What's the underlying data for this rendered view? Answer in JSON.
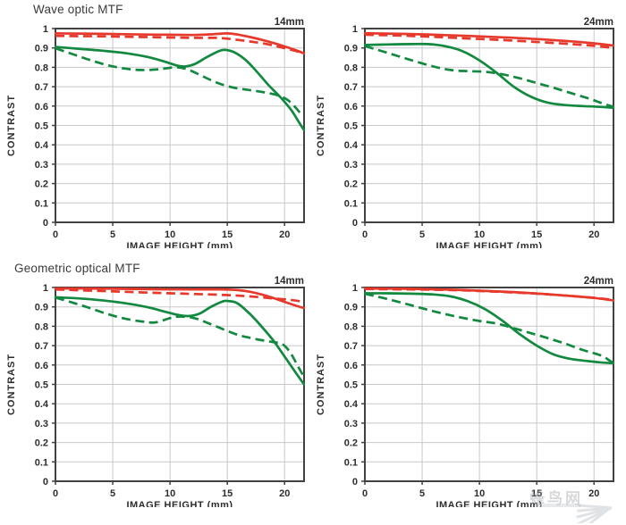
{
  "page": {
    "background": "#ffffff"
  },
  "sections": [
    {
      "title": "Wave optic MTF"
    },
    {
      "title": "Geometric optical MTF"
    }
  ],
  "watermark": {
    "text": "蜂鸟网"
  },
  "colors": {
    "red": "#e6392b",
    "green": "#12893f",
    "grid": "#c8c8c8",
    "axis": "#414141",
    "text": "#2d2d2d",
    "watermark_ray": "#c3c8cc"
  },
  "chart_data": [
    {
      "type": "line",
      "section": "Wave optic MTF",
      "focal_label": "14mm",
      "xlabel": "IMAGE HEIGHT (mm)",
      "ylabel": "CONTRAST",
      "xlim": [
        0,
        21.7
      ],
      "ylim": [
        0,
        1
      ],
      "xticks": [
        0,
        5,
        10,
        15,
        20
      ],
      "ytick_step": 0.1,
      "grid": true,
      "legend": "none",
      "series": [
        {
          "name": "red-solid",
          "color": "red",
          "dashed": false,
          "points": [
            [
              0,
              0.975
            ],
            [
              2,
              0.974
            ],
            [
              4,
              0.973
            ],
            [
              6,
              0.971
            ],
            [
              8,
              0.969
            ],
            [
              10,
              0.968
            ],
            [
              12,
              0.967
            ],
            [
              13.5,
              0.97
            ],
            [
              15,
              0.975
            ],
            [
              16,
              0.968
            ],
            [
              17,
              0.956
            ],
            [
              18,
              0.942
            ],
            [
              19,
              0.926
            ],
            [
              20,
              0.908
            ],
            [
              21,
              0.888
            ],
            [
              21.7,
              0.872
            ]
          ]
        },
        {
          "name": "red-dashed",
          "color": "red",
          "dashed": true,
          "points": [
            [
              0,
              0.962
            ],
            [
              2,
              0.961
            ],
            [
              4,
              0.96
            ],
            [
              6,
              0.958
            ],
            [
              8,
              0.956
            ],
            [
              10,
              0.954
            ],
            [
              12,
              0.952
            ],
            [
              14,
              0.952
            ],
            [
              15,
              0.948
            ],
            [
              16,
              0.941
            ],
            [
              17,
              0.933
            ],
            [
              18,
              0.925
            ],
            [
              19,
              0.913
            ],
            [
              20,
              0.899
            ],
            [
              21,
              0.884
            ],
            [
              21.7,
              0.87
            ]
          ]
        },
        {
          "name": "green-solid",
          "color": "green",
          "dashed": false,
          "points": [
            [
              0,
              0.905
            ],
            [
              2,
              0.896
            ],
            [
              4,
              0.886
            ],
            [
              6,
              0.874
            ],
            [
              8,
              0.854
            ],
            [
              9.5,
              0.83
            ],
            [
              10.7,
              0.808
            ],
            [
              11.4,
              0.805
            ],
            [
              12.2,
              0.818
            ],
            [
              13.2,
              0.852
            ],
            [
              14.2,
              0.882
            ],
            [
              14.8,
              0.89
            ],
            [
              15.6,
              0.878
            ],
            [
              16.6,
              0.838
            ],
            [
              17.6,
              0.776
            ],
            [
              18.6,
              0.708
            ],
            [
              19.6,
              0.648
            ],
            [
              20.6,
              0.578
            ],
            [
              21.3,
              0.512
            ],
            [
              21.7,
              0.476
            ]
          ]
        },
        {
          "name": "green-dashed",
          "color": "green",
          "dashed": true,
          "points": [
            [
              0,
              0.898
            ],
            [
              1.5,
              0.868
            ],
            [
              3,
              0.838
            ],
            [
              4.5,
              0.812
            ],
            [
              6,
              0.794
            ],
            [
              7.5,
              0.786
            ],
            [
              9,
              0.79
            ],
            [
              10.5,
              0.8
            ],
            [
              11.5,
              0.79
            ],
            [
              12.5,
              0.764
            ],
            [
              13.5,
              0.736
            ],
            [
              14.5,
              0.712
            ],
            [
              15.5,
              0.696
            ],
            [
              16.5,
              0.686
            ],
            [
              17.5,
              0.678
            ],
            [
              18.5,
              0.668
            ],
            [
              19.5,
              0.654
            ],
            [
              20.3,
              0.63
            ],
            [
              21,
              0.59
            ],
            [
              21.45,
              0.556
            ]
          ]
        }
      ]
    },
    {
      "type": "line",
      "section": "Wave optic MTF",
      "focal_label": "24mm",
      "xlabel": "IMAGE HEIGHT (mm)",
      "ylabel": "CONTRAST",
      "xlim": [
        0,
        21.7
      ],
      "ylim": [
        0,
        1
      ],
      "xticks": [
        0,
        5,
        10,
        15,
        20
      ],
      "ytick_step": 0.1,
      "grid": true,
      "legend": "none",
      "series": [
        {
          "name": "red-solid",
          "color": "red",
          "dashed": false,
          "points": [
            [
              0,
              0.976
            ],
            [
              3,
              0.973
            ],
            [
              6,
              0.968
            ],
            [
              9,
              0.962
            ],
            [
              12,
              0.955
            ],
            [
              15,
              0.946
            ],
            [
              18,
              0.934
            ],
            [
              20,
              0.924
            ],
            [
              21.7,
              0.912
            ]
          ]
        },
        {
          "name": "red-dashed",
          "color": "red",
          "dashed": true,
          "points": [
            [
              0,
              0.968
            ],
            [
              3,
              0.964
            ],
            [
              6,
              0.957
            ],
            [
              9,
              0.949
            ],
            [
              12,
              0.941
            ],
            [
              15,
              0.931
            ],
            [
              18,
              0.92
            ],
            [
              20,
              0.911
            ],
            [
              21.7,
              0.9
            ]
          ]
        },
        {
          "name": "green-solid",
          "color": "green",
          "dashed": false,
          "points": [
            [
              0,
              0.915
            ],
            [
              2,
              0.918
            ],
            [
              4,
              0.92
            ],
            [
              5.5,
              0.92
            ],
            [
              7,
              0.909
            ],
            [
              8.5,
              0.884
            ],
            [
              10,
              0.836
            ],
            [
              11.5,
              0.772
            ],
            [
              13,
              0.7
            ],
            [
              14.5,
              0.648
            ],
            [
              16,
              0.617
            ],
            [
              17.5,
              0.605
            ],
            [
              19,
              0.6
            ],
            [
              20.5,
              0.596
            ],
            [
              21.7,
              0.591
            ]
          ]
        },
        {
          "name": "green-dashed",
          "color": "green",
          "dashed": true,
          "points": [
            [
              0,
              0.91
            ],
            [
              2,
              0.874
            ],
            [
              4,
              0.838
            ],
            [
              6,
              0.804
            ],
            [
              7.5,
              0.786
            ],
            [
              9,
              0.78
            ],
            [
              10.5,
              0.777
            ],
            [
              12,
              0.764
            ],
            [
              13.5,
              0.744
            ],
            [
              15,
              0.719
            ],
            [
              16.5,
              0.694
            ],
            [
              18,
              0.667
            ],
            [
              19.5,
              0.64
            ],
            [
              20.5,
              0.619
            ],
            [
              21.4,
              0.601
            ],
            [
              21.7,
              0.598
            ]
          ]
        }
      ]
    },
    {
      "type": "line",
      "section": "Geometric optical MTF",
      "focal_label": "14mm",
      "xlabel": "IMAGE HEIGHT (mm)",
      "ylabel": "CONTRAST",
      "xlim": [
        0,
        21.7
      ],
      "ylim": [
        0,
        1
      ],
      "xticks": [
        0,
        5,
        10,
        15,
        20
      ],
      "ytick_step": 0.1,
      "grid": true,
      "legend": "none",
      "series": [
        {
          "name": "red-solid",
          "color": "red",
          "dashed": false,
          "points": [
            [
              0,
              0.995
            ],
            [
              3,
              0.995
            ],
            [
              6,
              0.993
            ],
            [
              9,
              0.991
            ],
            [
              12,
              0.99
            ],
            [
              14.5,
              0.99
            ],
            [
              16,
              0.986
            ],
            [
              17,
              0.978
            ],
            [
              18,
              0.964
            ],
            [
              19,
              0.946
            ],
            [
              20,
              0.926
            ],
            [
              21,
              0.906
            ],
            [
              21.7,
              0.894
            ]
          ]
        },
        {
          "name": "red-dashed",
          "color": "red",
          "dashed": true,
          "points": [
            [
              0,
              0.99
            ],
            [
              3,
              0.984
            ],
            [
              6,
              0.978
            ],
            [
              9,
              0.972
            ],
            [
              12,
              0.967
            ],
            [
              15,
              0.961
            ],
            [
              17,
              0.954
            ],
            [
              19,
              0.944
            ],
            [
              20.5,
              0.936
            ],
            [
              21.7,
              0.926
            ]
          ]
        },
        {
          "name": "green-solid",
          "color": "green",
          "dashed": false,
          "points": [
            [
              0,
              0.95
            ],
            [
              2,
              0.944
            ],
            [
              4,
              0.934
            ],
            [
              6,
              0.92
            ],
            [
              8,
              0.899
            ],
            [
              9.5,
              0.876
            ],
            [
              10.8,
              0.857
            ],
            [
              11.7,
              0.853
            ],
            [
              12.6,
              0.866
            ],
            [
              13.6,
              0.901
            ],
            [
              14.6,
              0.928
            ],
            [
              15.1,
              0.93
            ],
            [
              15.9,
              0.918
            ],
            [
              17,
              0.862
            ],
            [
              18,
              0.798
            ],
            [
              19,
              0.728
            ],
            [
              20,
              0.644
            ],
            [
              21,
              0.558
            ],
            [
              21.7,
              0.5
            ]
          ]
        },
        {
          "name": "green-dashed",
          "color": "green",
          "dashed": true,
          "points": [
            [
              0,
              0.948
            ],
            [
              1.5,
              0.922
            ],
            [
              3,
              0.894
            ],
            [
              4.5,
              0.864
            ],
            [
              6,
              0.84
            ],
            [
              7.5,
              0.825
            ],
            [
              8.7,
              0.82
            ],
            [
              10,
              0.842
            ],
            [
              10.8,
              0.85
            ],
            [
              12,
              0.844
            ],
            [
              13,
              0.824
            ],
            [
              14,
              0.8
            ],
            [
              15,
              0.776
            ],
            [
              16,
              0.754
            ],
            [
              17,
              0.74
            ],
            [
              18,
              0.728
            ],
            [
              19,
              0.718
            ],
            [
              19.8,
              0.708
            ],
            [
              20.5,
              0.664
            ],
            [
              21.2,
              0.59
            ],
            [
              21.6,
              0.548
            ]
          ]
        }
      ]
    },
    {
      "type": "line",
      "section": "Geometric optical MTF",
      "focal_label": "24mm",
      "xlabel": "IMAGE HEIGHT (mm)",
      "ylabel": "CONTRAST",
      "xlim": [
        0,
        21.7
      ],
      "ylim": [
        0,
        1
      ],
      "xticks": [
        0,
        5,
        10,
        15,
        20
      ],
      "ytick_step": 0.1,
      "grid": true,
      "legend": "none",
      "series": [
        {
          "name": "red-solid",
          "color": "red",
          "dashed": false,
          "points": [
            [
              0,
              0.995
            ],
            [
              4,
              0.993
            ],
            [
              8,
              0.988
            ],
            [
              12,
              0.979
            ],
            [
              15,
              0.969
            ],
            [
              18,
              0.956
            ],
            [
              20,
              0.946
            ],
            [
              21.7,
              0.933
            ]
          ]
        },
        {
          "name": "red-dashed",
          "color": "red",
          "dashed": true,
          "points": [
            [
              0,
              0.992
            ],
            [
              4,
              0.99
            ],
            [
              8,
              0.986
            ],
            [
              12,
              0.977
            ],
            [
              15,
              0.968
            ],
            [
              18,
              0.956
            ],
            [
              20,
              0.947
            ],
            [
              21.7,
              0.936
            ]
          ]
        },
        {
          "name": "green-solid",
          "color": "green",
          "dashed": false,
          "points": [
            [
              0,
              0.97
            ],
            [
              2,
              0.97
            ],
            [
              4,
              0.968
            ],
            [
              6,
              0.964
            ],
            [
              7.5,
              0.954
            ],
            [
              9,
              0.929
            ],
            [
              10.5,
              0.888
            ],
            [
              12,
              0.829
            ],
            [
              13.5,
              0.76
            ],
            [
              15,
              0.7
            ],
            [
              16.5,
              0.654
            ],
            [
              18,
              0.631
            ],
            [
              19.5,
              0.62
            ],
            [
              20.5,
              0.614
            ],
            [
              21.7,
              0.609
            ]
          ]
        },
        {
          "name": "green-dashed",
          "color": "green",
          "dashed": true,
          "points": [
            [
              0,
              0.968
            ],
            [
              2,
              0.94
            ],
            [
              4,
              0.909
            ],
            [
              6,
              0.877
            ],
            [
              8,
              0.85
            ],
            [
              10,
              0.827
            ],
            [
              11.5,
              0.814
            ],
            [
              13,
              0.79
            ],
            [
              14.5,
              0.764
            ],
            [
              16,
              0.738
            ],
            [
              17.5,
              0.71
            ],
            [
              19,
              0.678
            ],
            [
              20,
              0.661
            ],
            [
              20.8,
              0.644
            ],
            [
              21.4,
              0.621
            ],
            [
              21.7,
              0.611
            ]
          ]
        }
      ]
    }
  ]
}
